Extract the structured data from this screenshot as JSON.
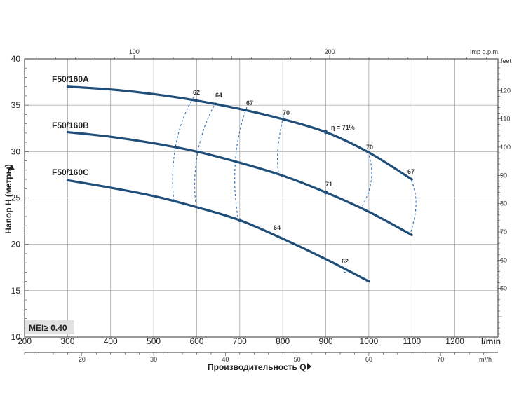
{
  "chart_data": {
    "type": "line",
    "ylabel": "Напор Н (метры)",
    "xlabel": "Производительность Q",
    "x_unit": "l/min",
    "x_ticks": [
      200,
      300,
      400,
      500,
      600,
      700,
      800,
      900,
      1000,
      1100,
      1200
    ],
    "y_ticks": [
      10,
      15,
      20,
      25,
      30,
      35,
      40
    ],
    "xlim": [
      200,
      1300
    ],
    "ylim": [
      10,
      40
    ],
    "top_axis": {
      "unit": "Imp g.p.m.",
      "ticks": [
        100,
        200
      ]
    },
    "right_axis": {
      "unit": "feet",
      "ticks": [
        50,
        60,
        70,
        80,
        90,
        100,
        110,
        120
      ]
    },
    "bottom2_axis": {
      "unit": "m³/h",
      "ticks": [
        20,
        30,
        40,
        50,
        60,
        70
      ]
    },
    "series": [
      {
        "name": "F50/160A",
        "x": [
          300,
          400,
          500,
          600,
          700,
          800,
          900,
          1000,
          1100
        ],
        "y": [
          37.0,
          36.7,
          36.2,
          35.5,
          34.6,
          33.5,
          32.1,
          29.9,
          27.0
        ]
      },
      {
        "name": "F50/160B",
        "x": [
          300,
          400,
          500,
          600,
          700,
          800,
          900,
          1000,
          1100
        ],
        "y": [
          32.1,
          31.6,
          30.9,
          30.0,
          28.8,
          27.4,
          25.6,
          23.5,
          21.0
        ]
      },
      {
        "name": "F50/160C",
        "x": [
          300,
          400,
          500,
          600,
          700,
          800,
          900,
          1000
        ],
        "y": [
          26.9,
          26.1,
          25.2,
          24.0,
          22.6,
          20.6,
          18.4,
          16.0
        ]
      }
    ],
    "efficiency_labels": [
      "62",
      "64",
      "67",
      "70",
      "η = 71%",
      "70",
      "67",
      "71",
      "64",
      "62"
    ],
    "badge": "MEI≥ 0.40"
  }
}
